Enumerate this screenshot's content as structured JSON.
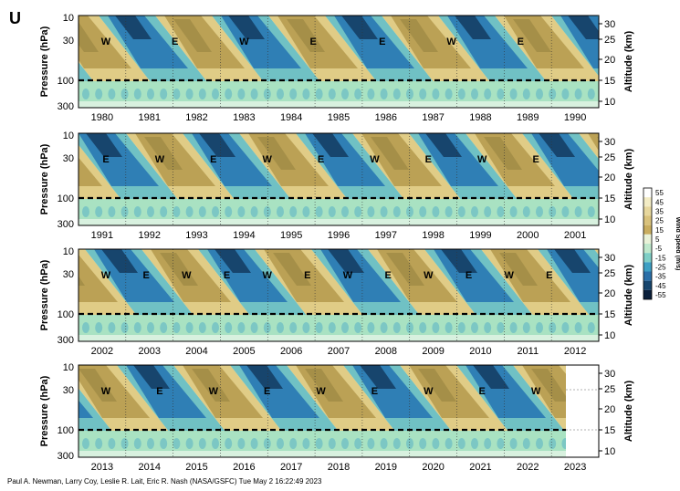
{
  "figure_letter": "U",
  "credit": "Paul A. Newman, Larry Coy, Leslie R. Lait, Eric R. Nash (NASA/GSFC) Tue May  2 16:22:49 2023",
  "colors": {
    "easterly_deep": "#17456d",
    "easterly": "#2f7fb5",
    "easterly_light": "#70c1c4",
    "near_zero": "#a9e2c2",
    "near_zero_light": "#d8f1df",
    "westerly_light": "#e0cc86",
    "westerly": "#bba155",
    "westerly_deep": "#8b7a3a"
  },
  "chart_data": {
    "type": "heatmap",
    "variable_letter": "U",
    "ylabel": "Pressure (hPa)",
    "y2label": "Altitude (km)",
    "pressure_ticks": [
      "10",
      "30",
      "100",
      "300"
    ],
    "altitude_ticks": [
      "30",
      "25",
      "20",
      "15",
      "10"
    ],
    "colorbar": {
      "label": "Wind Speed (m/s)",
      "ticks": [
        55,
        45,
        35,
        25,
        15,
        5,
        -5,
        -15,
        -25,
        -35,
        -45,
        -55
      ]
    },
    "panels": [
      {
        "years": [
          "1980",
          "1981",
          "1982",
          "1983",
          "1984",
          "1985",
          "1986",
          "1987",
          "1988",
          "1989",
          "1990"
        ],
        "regime_labels": [
          "W",
          "E",
          "W",
          "E",
          "E",
          "W",
          "E"
        ]
      },
      {
        "years": [
          "1991",
          "1992",
          "1993",
          "1994",
          "1995",
          "1996",
          "1997",
          "1998",
          "1999",
          "2000",
          "2001"
        ],
        "regime_labels": [
          "E",
          "W",
          "E",
          "W",
          "E",
          "W",
          "E",
          "W",
          "E"
        ]
      },
      {
        "years": [
          "2002",
          "2003",
          "2004",
          "2005",
          "2006",
          "2007",
          "2008",
          "2009",
          "2010",
          "2011",
          "2012"
        ],
        "regime_labels": [
          "W",
          "E",
          "W",
          "E",
          "W",
          "E",
          "W",
          "E",
          "W",
          "E",
          "W",
          "E"
        ]
      },
      {
        "years": [
          "2013",
          "2014",
          "2015",
          "2016",
          "2017",
          "2018",
          "2019",
          "2020",
          "2021",
          "2022",
          "2023"
        ],
        "regime_labels": [
          "W",
          "E",
          "W",
          "E",
          "W",
          "E",
          "W",
          "E",
          "W"
        ]
      }
    ]
  }
}
